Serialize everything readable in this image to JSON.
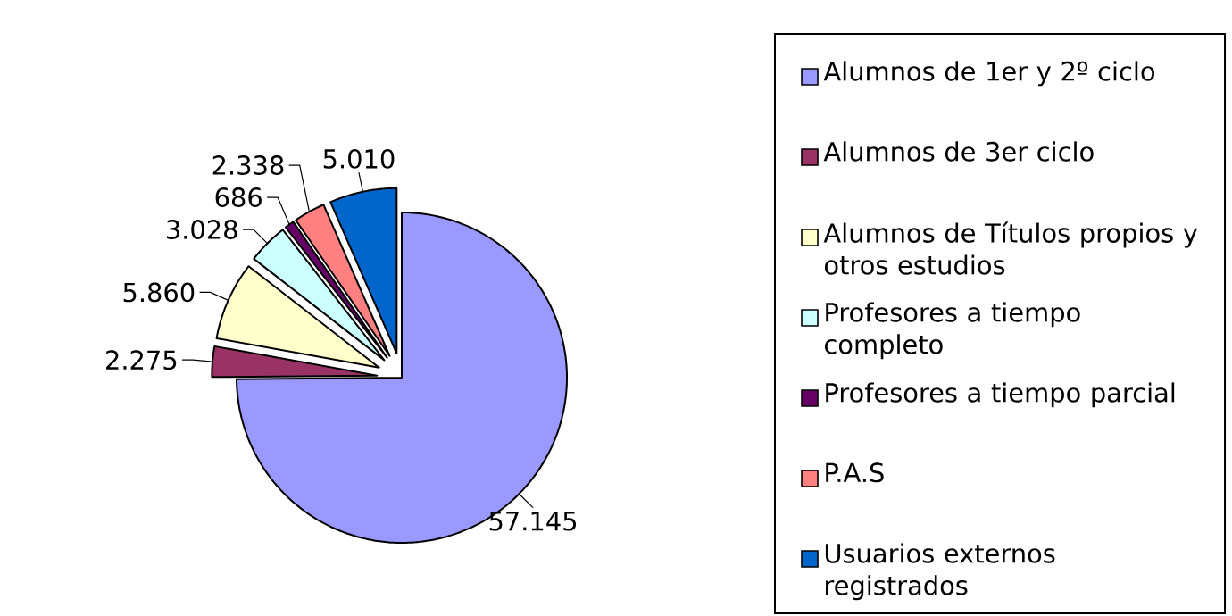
{
  "chart_data": {
    "type": "pie",
    "categories": [
      "Alumnos de 1er y 2º ciclo",
      "Alumnos de 3er ciclo",
      "Alumnos de Títulos propios y otros estudios",
      "Profesores a tiempo completo",
      "Profesores a tiempo parcial",
      "P.A.S",
      "Usuarios externos registrados"
    ],
    "values": [
      57145,
      2275,
      5860,
      3028,
      686,
      2338,
      5010
    ],
    "colors": [
      "#9999ff",
      "#993366",
      "#ffffcc",
      "#ccffff",
      "#660066",
      "#ff8080",
      "#0066cc"
    ],
    "value_labels": [
      "57.145",
      "2.275",
      "5.860",
      "3.028",
      "686",
      "2.338",
      "5.010"
    ],
    "legend": "right"
  }
}
